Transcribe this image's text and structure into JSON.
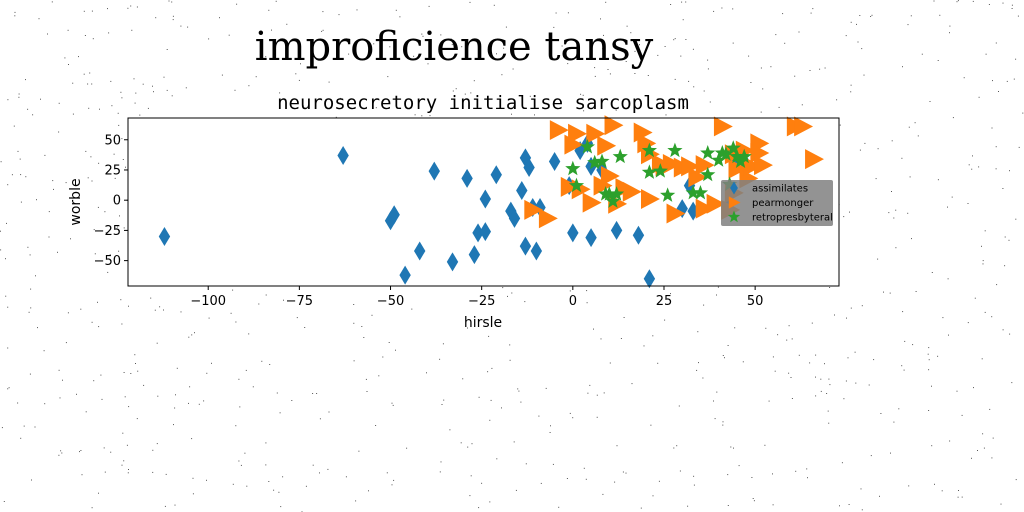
{
  "suptitle": "improficience tansy",
  "chart_data": {
    "type": "scatter",
    "title": "neurosecretory initialise sarcoplasm",
    "xlabel": "hirsle",
    "ylabel": "worble",
    "xlim": [
      -122,
      73
    ],
    "ylim": [
      -71,
      68
    ],
    "xticks": [
      -100,
      -75,
      -50,
      -25,
      0,
      25,
      50
    ],
    "xtick_labels": [
      "−100",
      "−75",
      "−50",
      "−25",
      "0",
      "25",
      "50"
    ],
    "yticks": [
      -50,
      -25,
      0,
      25,
      50
    ],
    "ytick_labels": [
      "−50",
      "−25",
      "0",
      "25",
      "50"
    ],
    "grid": false,
    "legend_position": "right",
    "series": [
      {
        "name": "assimilates",
        "marker": "diamond",
        "color": "#1f77b4",
        "points": [
          [
            -112,
            -30
          ],
          [
            -63,
            37
          ],
          [
            -50,
            -17
          ],
          [
            -49,
            -12
          ],
          [
            -46,
            -62
          ],
          [
            -42,
            -42
          ],
          [
            -38,
            24
          ],
          [
            -33,
            -51
          ],
          [
            -29,
            18
          ],
          [
            -27,
            -45
          ],
          [
            -26,
            -27
          ],
          [
            -24,
            -26
          ],
          [
            -24,
            1
          ],
          [
            -21,
            21
          ],
          [
            -17,
            -9
          ],
          [
            -16,
            -15
          ],
          [
            -14,
            8
          ],
          [
            -13,
            -38
          ],
          [
            -13,
            35
          ],
          [
            -12,
            27
          ],
          [
            -11,
            -6
          ],
          [
            -10,
            -42
          ],
          [
            -9,
            -6
          ],
          [
            -5,
            32
          ],
          [
            -1,
            12
          ],
          [
            0,
            -27
          ],
          [
            2,
            41
          ],
          [
            4,
            47
          ],
          [
            5,
            -31
          ],
          [
            5,
            28
          ],
          [
            8,
            25
          ],
          [
            12,
            -25
          ],
          [
            18,
            -29
          ],
          [
            21,
            -65
          ],
          [
            30,
            -7
          ],
          [
            32,
            12
          ],
          [
            33,
            -9
          ],
          [
            43,
            -2
          ],
          [
            45,
            33
          ],
          [
            47,
            32
          ]
        ]
      },
      {
        "name": "pearmonger",
        "marker": "triangle-right",
        "color": "#ff7f0e",
        "points": [
          [
            -7,
            -15
          ],
          [
            -11,
            -8
          ],
          [
            -4,
            58
          ],
          [
            0,
            46
          ],
          [
            1,
            55
          ],
          [
            5,
            -2
          ],
          [
            -1,
            11
          ],
          [
            2,
            9
          ],
          [
            6,
            55
          ],
          [
            8,
            12
          ],
          [
            9,
            45
          ],
          [
            10,
            20
          ],
          [
            11,
            62
          ],
          [
            12,
            -3
          ],
          [
            14,
            10
          ],
          [
            16,
            7
          ],
          [
            19,
            56
          ],
          [
            20,
            47
          ],
          [
            21,
            1
          ],
          [
            21,
            38
          ],
          [
            24,
            30
          ],
          [
            25,
            28
          ],
          [
            27,
            30
          ],
          [
            28,
            -11
          ],
          [
            30,
            27
          ],
          [
            32,
            28
          ],
          [
            34,
            19
          ],
          [
            36,
            29
          ],
          [
            36,
            -7
          ],
          [
            39,
            -3
          ],
          [
            41,
            61
          ],
          [
            44,
            38
          ],
          [
            43,
            -8
          ],
          [
            44,
            6
          ],
          [
            45,
            26
          ],
          [
            47,
            41
          ],
          [
            48,
            18
          ],
          [
            49,
            28
          ],
          [
            51,
            47
          ],
          [
            51,
            39
          ],
          [
            52,
            29
          ],
          [
            61,
            61
          ],
          [
            63,
            61
          ],
          [
            66,
            34
          ]
        ]
      },
      {
        "name": "retropresbyteral",
        "marker": "star",
        "color": "#2ca02c",
        "points": [
          [
            0,
            26
          ],
          [
            1,
            12
          ],
          [
            4,
            44
          ],
          [
            6,
            31
          ],
          [
            8,
            32
          ],
          [
            9,
            5
          ],
          [
            10,
            5
          ],
          [
            11,
            -1
          ],
          [
            12,
            5
          ],
          [
            13,
            36
          ],
          [
            21,
            41
          ],
          [
            21,
            23
          ],
          [
            24,
            24
          ],
          [
            26,
            4
          ],
          [
            28,
            41
          ],
          [
            33,
            6
          ],
          [
            35,
            6
          ],
          [
            37,
            39
          ],
          [
            37,
            21
          ],
          [
            40,
            33
          ],
          [
            41,
            39
          ],
          [
            42,
            38
          ],
          [
            43,
            13
          ],
          [
            44,
            43
          ],
          [
            45,
            36
          ],
          [
            46,
            32
          ],
          [
            47,
            36
          ]
        ]
      }
    ]
  }
}
